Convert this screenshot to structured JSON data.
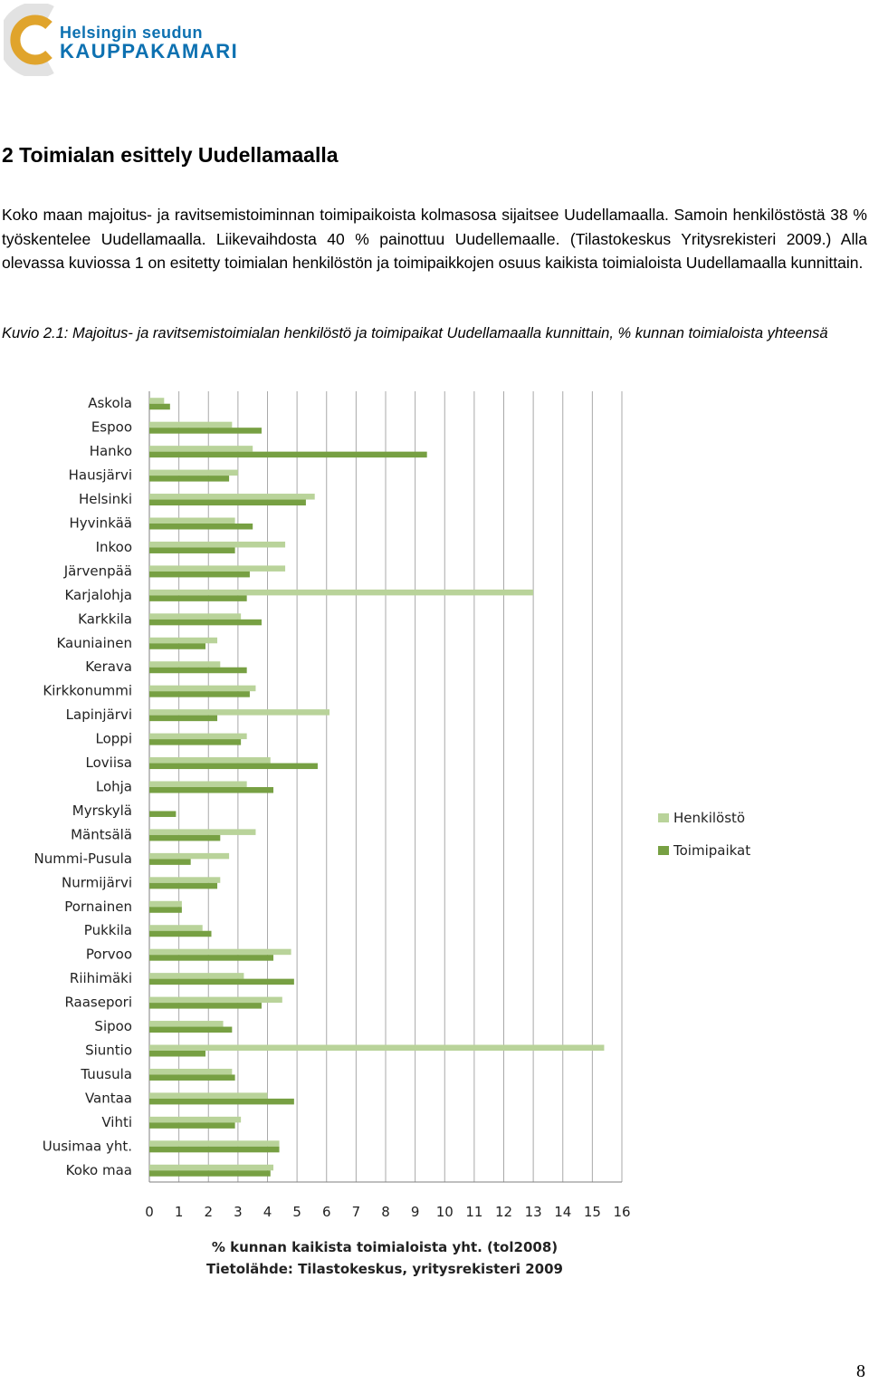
{
  "header": {
    "logo_line1": "Helsingin seudun",
    "logo_line2": "KAUPPAKAMARI"
  },
  "section": {
    "heading": "2 Toimialan esittely Uudellamaalla"
  },
  "body": {
    "paragraph": "Koko maan majoitus- ja ravitsemistoiminnan toimipaikoista kolmasosa sijaitsee Uudellamaalla. Samoin henkilöstöstä 38 % työskentelee Uudellamaalla. Liikevaihdosta 40 % painottuu Uudellemaalle. (Tilastokeskus Yritysrekisteri 2009.) Alla olevassa kuviossa 1 on esitetty toimialan henkilöstön ja toimipaikkojen osuus kaikista toimialoista Uudellamaalla kunnittain."
  },
  "figure": {
    "caption": "Kuvio 2.1: Majoitus- ja ravitsemistoimialan henkilöstö ja toimipaikat Uudellamaalla kunnittain, % kunnan toimialoista yhteensä"
  },
  "chart_data": {
    "type": "bar",
    "orientation": "horizontal",
    "categories": [
      "Askola",
      "Espoo",
      "Hanko",
      "Hausjärvi",
      "Helsinki",
      "Hyvinkää",
      "Inkoo",
      "Järvenpää",
      "Karjalohja",
      "Karkkila",
      "Kauniainen",
      "Kerava",
      "Kirkkonummi",
      "Lapinjärvi",
      "Loppi",
      "Loviisa",
      "Lohja",
      "Myrskylä",
      "Mäntsälä",
      "Nummi-Pusula",
      "Nurmijärvi",
      "Pornainen",
      "Pukkila",
      "Porvoo",
      "Riihimäki",
      "Raasepori",
      "Sipoo",
      "Siuntio",
      "Tuusula",
      "Vantaa",
      "Vihti",
      "Uusimaa yht.",
      "Koko maa"
    ],
    "series": [
      {
        "name": "Henkilöstö",
        "color": "#b9d39a",
        "values": [
          0.5,
          2.8,
          3.5,
          3.0,
          5.6,
          2.9,
          4.6,
          4.6,
          13.0,
          3.1,
          2.3,
          2.4,
          3.6,
          6.1,
          3.3,
          4.1,
          3.3,
          0.0,
          3.6,
          2.7,
          2.4,
          1.1,
          1.8,
          4.8,
          3.2,
          4.5,
          2.5,
          15.4,
          2.8,
          4.0,
          3.1,
          4.4,
          4.2
        ]
      },
      {
        "name": "Toimipaikat",
        "color": "#77a043",
        "values": [
          0.7,
          3.8,
          9.4,
          2.7,
          5.3,
          3.5,
          2.9,
          3.4,
          3.3,
          3.8,
          1.9,
          3.3,
          3.4,
          2.3,
          3.1,
          5.7,
          4.2,
          0.9,
          2.4,
          1.4,
          2.3,
          1.1,
          2.1,
          4.2,
          4.9,
          3.8,
          2.8,
          1.9,
          2.9,
          4.9,
          2.9,
          4.4,
          4.1
        ]
      }
    ],
    "xlim": [
      0,
      16
    ],
    "xticks": [
      "0",
      "1",
      "2",
      "3",
      "4",
      "5",
      "6",
      "7",
      "8",
      "9",
      "10",
      "11",
      "12",
      "13",
      "14",
      "15",
      "16"
    ],
    "xlabel": "% kunnan kaikista toimialoista yht. (tol2008)",
    "source": "Tietolähde: Tilastokeskus,  yritysrekisteri 2009",
    "grid": true,
    "legend_position": "right"
  },
  "footer": {
    "page_number": "8"
  }
}
